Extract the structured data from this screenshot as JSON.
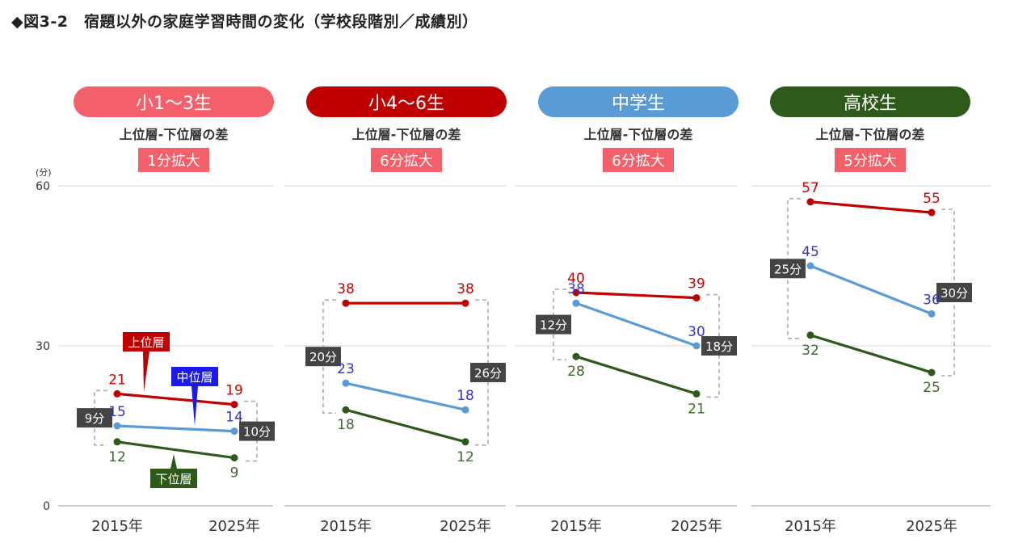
{
  "page_title": "◆図3-2　宿題以外の家庭学習時間の変化（学校段階別／成績別）",
  "colors": {
    "upper": "#c00000",
    "middle": "#5b9bd5",
    "lower": "#2d5a1b",
    "upper_label": "#cc0000",
    "middle_label": "#3333cc",
    "lower_label": "#3a6b2a",
    "gap_label_bg": "#444444",
    "diff_badge_bg": "#f4606a",
    "guide": "#aaaaaa"
  },
  "chart_data": {
    "type": "line",
    "y_unit": "(分)",
    "ylim": [
      0,
      60
    ],
    "y_ticks": [
      "0",
      "30",
      "60"
    ],
    "x_categories": [
      "2015年",
      "2025年"
    ],
    "diff_caption": "上位層-下位層の差",
    "series_names": {
      "upper": "上位層",
      "middle": "中位層",
      "lower": "下位層"
    },
    "panels": [
      {
        "header": "小1～3生",
        "header_color": "#f4606a",
        "diff": "1分拡大",
        "upper": [
          21,
          19
        ],
        "middle": [
          15,
          14
        ],
        "lower": [
          12,
          9
        ],
        "gap_2015": "9分",
        "gap_2025": "10分"
      },
      {
        "header": "小4～6生",
        "header_color": "#c00000",
        "diff": "6分拡大",
        "upper": [
          38,
          38
        ],
        "middle": [
          23,
          18
        ],
        "lower": [
          18,
          12
        ],
        "gap_2015": "20分",
        "gap_2025": "26分"
      },
      {
        "header": "中学生",
        "header_color": "#5b9bd5",
        "diff": "6分拡大",
        "upper": [
          40,
          39
        ],
        "middle": [
          38,
          30
        ],
        "lower": [
          28,
          21
        ],
        "gap_2015": "12分",
        "gap_2025": "18分"
      },
      {
        "header": "高校生",
        "header_color": "#2d5a1b",
        "diff": "5分拡大",
        "upper": [
          57,
          55
        ],
        "middle": [
          45,
          36
        ],
        "lower": [
          32,
          25
        ],
        "gap_2015": "25分",
        "gap_2025": "30分"
      }
    ]
  }
}
